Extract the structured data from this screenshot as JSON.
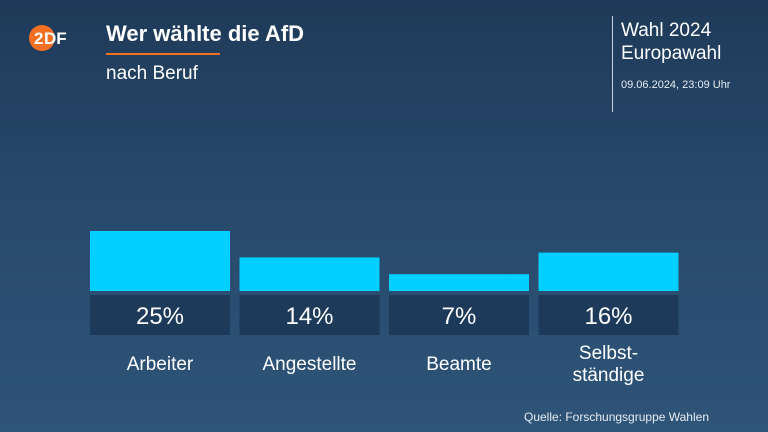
{
  "header": {
    "title": "Wer wählte die AfD",
    "subtitle": "nach Beruf"
  },
  "election": {
    "line1": "Wahl 2024",
    "line2": "Europawahl",
    "timestamp": "09.06.2024, 23:09 Uhr"
  },
  "source": "Quelle: Forschungsgruppe Wahlen",
  "logo": {
    "icon": "zdf-logo",
    "color": "#f36f21"
  },
  "colors": {
    "bar": "#00d0ff",
    "label_box": "#1d3a5a",
    "accent": "#f36f21"
  },
  "chart_data": {
    "type": "bar",
    "categories": [
      "Arbeiter",
      "Angestellte",
      "Beamte",
      "Selbst-\nständige"
    ],
    "values": [
      25,
      14,
      7,
      16
    ],
    "value_labels": [
      "25%",
      "14%",
      "7%",
      "16%"
    ],
    "ylim": [
      0,
      25
    ],
    "grid": false
  }
}
